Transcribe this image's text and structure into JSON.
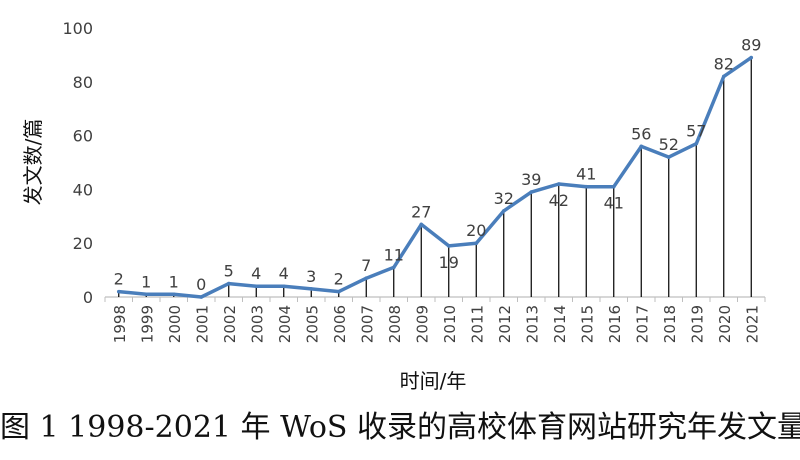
{
  "caption": "图 1 1998-2021 年 WoS 收录的高校体育网站研究年发文量",
  "colors": {
    "line": "#4a7ebb",
    "axis": "#bfbfbf",
    "drop": "#000000",
    "text": "#404040"
  },
  "chart_data": {
    "type": "line",
    "title": "",
    "xlabel": "时间/年",
    "ylabel": "发文数/篇",
    "ylim": [
      0,
      100
    ],
    "yticks": [
      0,
      20,
      40,
      60,
      80,
      100
    ],
    "grid": false,
    "drop_lines": true,
    "categories": [
      "1998",
      "1999",
      "2000",
      "2001",
      "2002",
      "2003",
      "2004",
      "2005",
      "2006",
      "2007",
      "2008",
      "2009",
      "2010",
      "2011",
      "2012",
      "2013",
      "2014",
      "2015",
      "2016",
      "2017",
      "2018",
      "2019",
      "2020",
      "2021"
    ],
    "values": [
      2,
      1,
      1,
      0,
      5,
      4,
      4,
      3,
      2,
      7,
      11,
      27,
      19,
      20,
      32,
      39,
      42,
      41,
      41,
      56,
      52,
      57,
      82,
      89
    ]
  }
}
